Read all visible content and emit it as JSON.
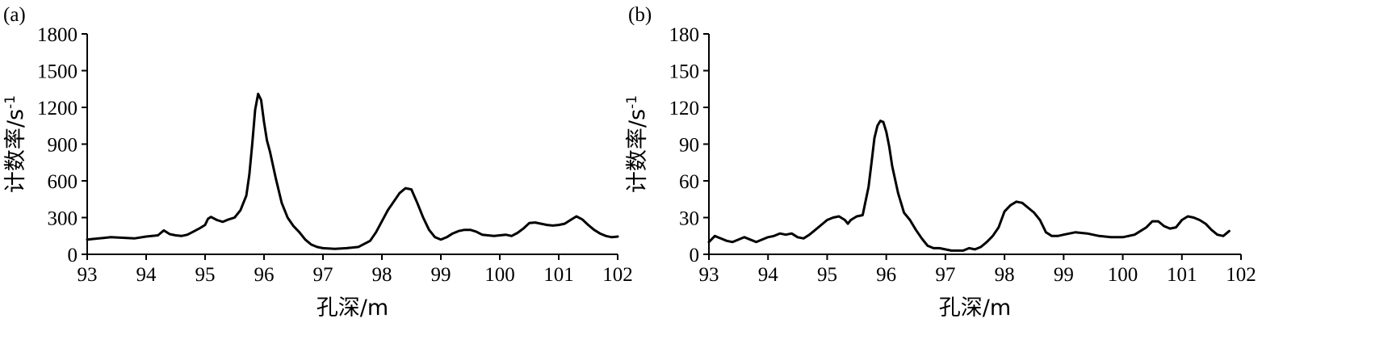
{
  "chart_data": [
    {
      "type": "line",
      "panel_label": "(a)",
      "xlabel": "孔深/m",
      "ylabel": "计数率/s",
      "ylabel_sup": "-1",
      "xlim": [
        93,
        102
      ],
      "ylim": [
        0,
        1800
      ],
      "xticks": [
        93,
        94,
        95,
        96,
        97,
        98,
        99,
        100,
        101,
        102
      ],
      "yticks": [
        0,
        300,
        600,
        900,
        1200,
        1500,
        1800
      ],
      "grid": false,
      "series": [
        {
          "x": [
            93.0,
            93.2,
            93.4,
            93.6,
            93.8,
            94.0,
            94.1,
            94.2,
            94.3,
            94.4,
            94.5,
            94.6,
            94.7,
            94.8,
            94.9,
            95.0,
            95.05,
            95.1,
            95.2,
            95.3,
            95.4,
            95.5,
            95.6,
            95.7,
            95.75,
            95.8,
            95.85,
            95.9,
            95.95,
            96.0,
            96.05,
            96.1,
            96.2,
            96.3,
            96.4,
            96.5,
            96.6,
            96.7,
            96.8,
            96.9,
            97.0,
            97.2,
            97.4,
            97.6,
            97.8,
            97.9,
            98.0,
            98.1,
            98.2,
            98.3,
            98.4,
            98.5,
            98.6,
            98.7,
            98.8,
            98.9,
            99.0,
            99.1,
            99.2,
            99.3,
            99.4,
            99.5,
            99.6,
            99.7,
            99.8,
            99.9,
            100.0,
            100.1,
            100.2,
            100.3,
            100.4,
            100.5,
            100.6,
            100.7,
            100.8,
            100.9,
            101.0,
            101.1,
            101.2,
            101.3,
            101.4,
            101.5,
            101.6,
            101.7,
            101.8,
            101.9,
            102.0
          ],
          "y": [
            120,
            130,
            140,
            135,
            130,
            145,
            150,
            155,
            195,
            165,
            155,
            150,
            160,
            185,
            210,
            240,
            290,
            305,
            280,
            265,
            285,
            300,
            360,
            480,
            650,
            900,
            1180,
            1310,
            1260,
            1080,
            930,
            840,
            620,
            420,
            300,
            230,
            180,
            120,
            80,
            60,
            50,
            45,
            50,
            60,
            110,
            180,
            270,
            360,
            430,
            500,
            540,
            530,
            420,
            300,
            200,
            140,
            120,
            140,
            170,
            190,
            200,
            200,
            185,
            160,
            155,
            150,
            155,
            160,
            150,
            175,
            210,
            255,
            260,
            250,
            240,
            235,
            240,
            250,
            280,
            310,
            285,
            240,
            200,
            170,
            150,
            140,
            145
          ]
        }
      ]
    },
    {
      "type": "line",
      "panel_label": "(b)",
      "xlabel": "孔深/m",
      "ylabel": "计数率/s",
      "ylabel_sup": "-1",
      "xlim": [
        93,
        102
      ],
      "ylim": [
        0,
        180
      ],
      "xticks": [
        93,
        94,
        95,
        96,
        97,
        98,
        99,
        100,
        101,
        102
      ],
      "yticks": [
        0,
        30,
        60,
        90,
        120,
        150,
        180
      ],
      "grid": false,
      "series": [
        {
          "x": [
            93.0,
            93.1,
            93.2,
            93.3,
            93.4,
            93.5,
            93.6,
            93.7,
            93.8,
            93.9,
            94.0,
            94.1,
            94.2,
            94.3,
            94.4,
            94.5,
            94.6,
            94.7,
            94.8,
            94.9,
            95.0,
            95.1,
            95.2,
            95.3,
            95.35,
            95.4,
            95.5,
            95.6,
            95.7,
            95.75,
            95.8,
            95.85,
            95.9,
            95.95,
            96.0,
            96.05,
            96.1,
            96.2,
            96.3,
            96.4,
            96.5,
            96.6,
            96.7,
            96.8,
            96.9,
            97.0,
            97.1,
            97.2,
            97.3,
            97.4,
            97.5,
            97.6,
            97.7,
            97.8,
            97.9,
            98.0,
            98.1,
            98.2,
            98.3,
            98.4,
            98.5,
            98.6,
            98.7,
            98.8,
            98.9,
            99.0,
            99.2,
            99.4,
            99.6,
            99.8,
            100.0,
            100.2,
            100.4,
            100.5,
            100.6,
            100.7,
            100.8,
            100.9,
            101.0,
            101.1,
            101.2,
            101.3,
            101.4,
            101.5,
            101.6,
            101.7,
            101.8
          ],
          "y": [
            10,
            15,
            13,
            11,
            10,
            12,
            14,
            12,
            10,
            12,
            14,
            15,
            17,
            16,
            17,
            14,
            13,
            16,
            20,
            24,
            28,
            30,
            31,
            28,
            25,
            28,
            31,
            32,
            55,
            75,
            95,
            105,
            109,
            108,
            100,
            88,
            72,
            50,
            34,
            28,
            20,
            13,
            7,
            5,
            5,
            4,
            3,
            3,
            3,
            5,
            4,
            6,
            10,
            15,
            22,
            35,
            40,
            43,
            42,
            38,
            34,
            28,
            18,
            15,
            15,
            16,
            18,
            17,
            15,
            14,
            14,
            16,
            22,
            27,
            27,
            23,
            21,
            22,
            28,
            31,
            30,
            28,
            25,
            20,
            16,
            15,
            19
          ]
        }
      ]
    }
  ]
}
